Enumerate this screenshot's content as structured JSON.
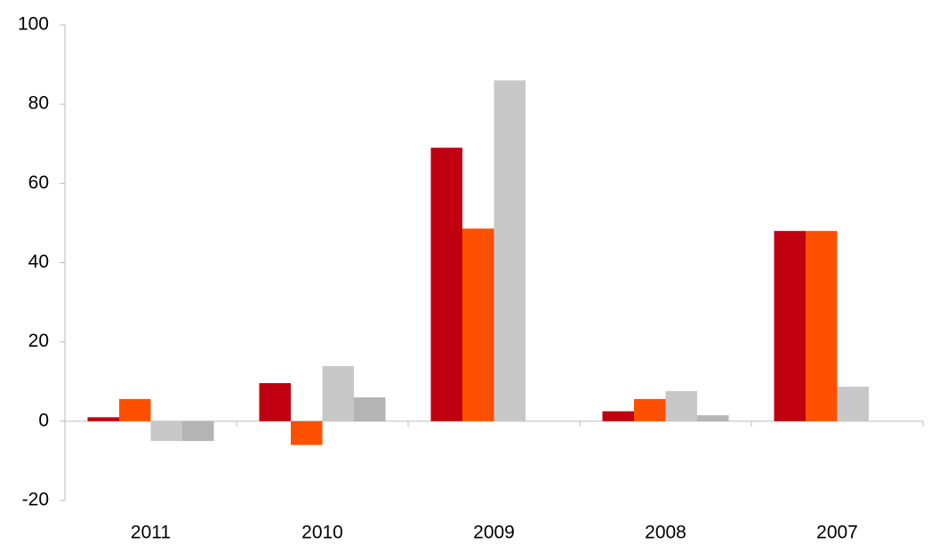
{
  "chart_data": {
    "type": "bar",
    "categories": [
      "2011",
      "2010",
      "2009",
      "2008",
      "2007"
    ],
    "series": [
      {
        "color": "#c00010",
        "values": [
          1,
          9.6,
          69,
          2.5,
          48
        ]
      },
      {
        "color": "#ff5000",
        "values": [
          5.6,
          -6,
          48.6,
          5.6,
          48
        ]
      },
      {
        "color": "#c8c8c8",
        "values": [
          -5,
          13.9,
          86,
          7.6,
          8.7
        ]
      },
      {
        "color": "#b4b4b4",
        "values": [
          -5,
          6,
          null,
          1.5,
          null
        ]
      }
    ],
    "ylim": [
      -20,
      100
    ],
    "yticks": [
      -20,
      0,
      20,
      40,
      60,
      80,
      100
    ],
    "grid": false
  }
}
